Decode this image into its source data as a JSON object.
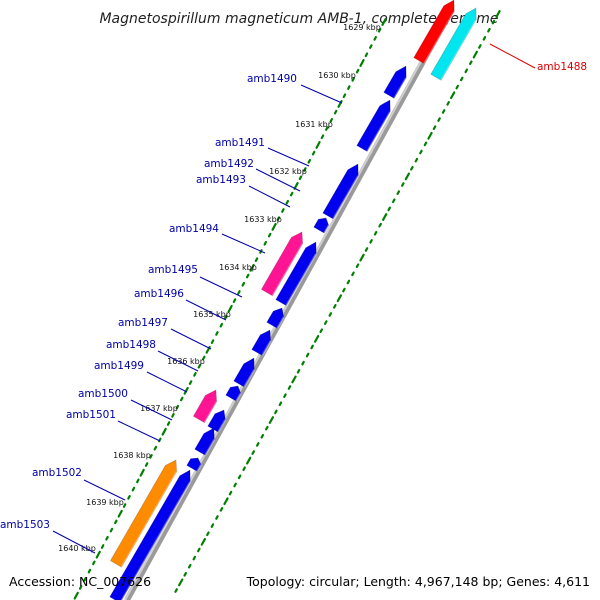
{
  "title": "Magnetospirillum magneticum AMB-1, complete genome",
  "footer": {
    "accession": "Accession: NC_007626",
    "topology": "Topology: circular; Length: 4,967,148 bp; Genes: 4,611"
  },
  "colors": {
    "label_default": "#0000aa",
    "label_highlight": "#dd0000",
    "forward_cds": "#ff0000",
    "forward_rna": "#00e5ee",
    "reverse_cds": "#0000ee",
    "reverse_pink": "#ff1493",
    "reverse_orange": "#ff8c00",
    "backbone": "#9a9a9a",
    "scale_dots": "#008000"
  },
  "kbp_ticks": [
    "1629 kbp",
    "1630 kbp",
    "1631 kbp",
    "1632 kbp",
    "1633 kbp",
    "1634 kbp",
    "1635 kbp",
    "1636 kbp",
    "1637 kbp",
    "1638 kbp",
    "1639 kbp",
    "1640 kbp"
  ],
  "gene_labels": [
    {
      "text": "amb1488",
      "highlight": true
    },
    {
      "text": "amb1490",
      "highlight": false
    },
    {
      "text": "amb1491",
      "highlight": false
    },
    {
      "text": "amb1492",
      "highlight": false
    },
    {
      "text": "amb1493",
      "highlight": false
    },
    {
      "text": "amb1494",
      "highlight": false
    },
    {
      "text": "amb1495",
      "highlight": false
    },
    {
      "text": "amb1496",
      "highlight": false
    },
    {
      "text": "amb1497",
      "highlight": false
    },
    {
      "text": "amb1498",
      "highlight": false
    },
    {
      "text": "amb1499",
      "highlight": false
    },
    {
      "text": "amb1500",
      "highlight": false
    },
    {
      "text": "amb1501",
      "highlight": false
    },
    {
      "text": "amb1502",
      "highlight": false
    },
    {
      "text": "amb1503",
      "highlight": false
    }
  ]
}
